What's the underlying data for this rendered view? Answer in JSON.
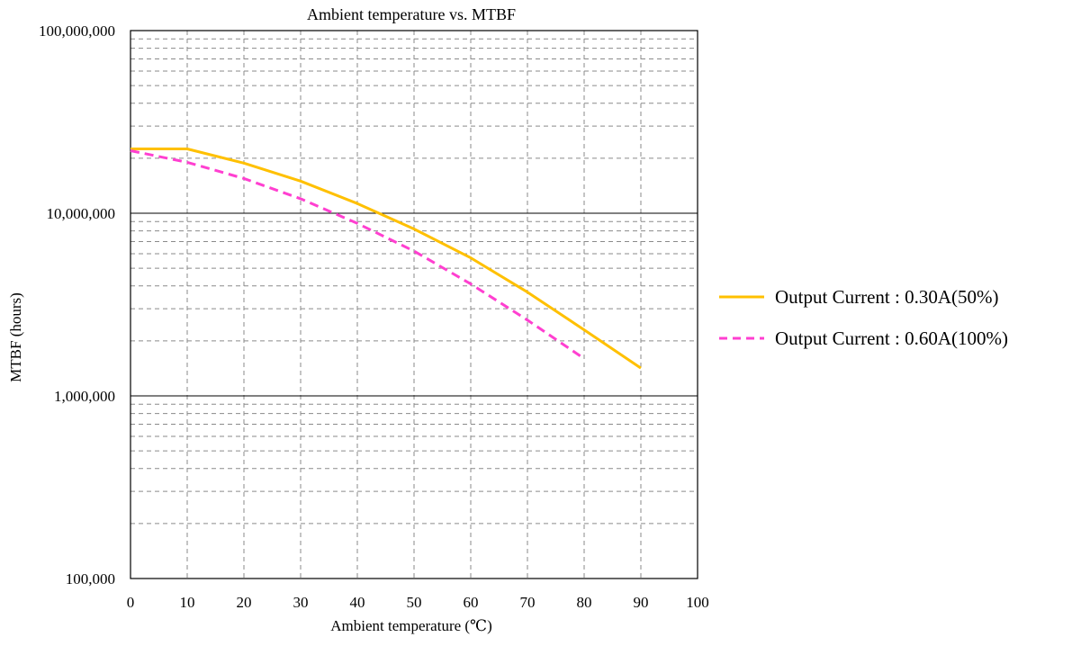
{
  "chart_data": {
    "type": "line",
    "title": "Ambient temperature vs. MTBF",
    "xlabel": "Ambient temperature (℃)",
    "ylabel": "MTBF (hours)",
    "xlim": [
      0,
      100
    ],
    "ylim": [
      100000,
      100000000
    ],
    "yscale": "log",
    "grid": true,
    "legend_position": "right",
    "x_ticks": [
      0,
      10,
      20,
      30,
      40,
      50,
      60,
      70,
      80,
      90,
      100
    ],
    "x_tick_labels": [
      "0",
      "10",
      "20",
      "30",
      "40",
      "50",
      "60",
      "70",
      "80",
      "90",
      "100"
    ],
    "y_ticks": [
      100000,
      1000000,
      10000000,
      100000000
    ],
    "y_tick_labels": [
      "100,000",
      "1,000,000",
      "10,000,000",
      "100,000,000"
    ],
    "series": [
      {
        "name": "Output Current : 0.30A(50%)",
        "color": "#ffc000",
        "style": "solid",
        "x": [
          0,
          10,
          20,
          30,
          40,
          50,
          60,
          70,
          80,
          90
        ],
        "y": [
          22500000,
          22500000,
          18800000,
          15000000,
          11300000,
          8200000,
          5700000,
          3700000,
          2300000,
          1420000
        ]
      },
      {
        "name": "Output Current : 0.60A(100%)",
        "color": "#ff3fd0",
        "style": "dashed",
        "x": [
          0,
          10,
          20,
          30,
          40,
          50,
          60,
          70,
          80
        ],
        "y": [
          22000000,
          19000000,
          15500000,
          12000000,
          8800000,
          6200000,
          4100000,
          2600000,
          1600000
        ]
      }
    ]
  }
}
